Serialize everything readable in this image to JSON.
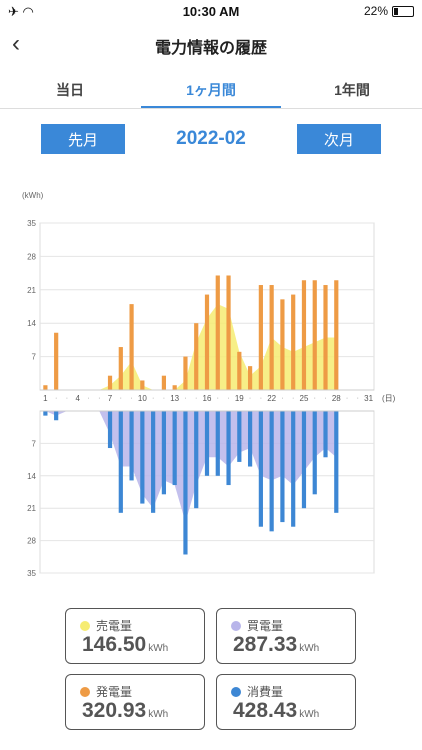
{
  "status": {
    "time": "10:30 AM",
    "left_icons": "✈ ◠",
    "battery": "22%"
  },
  "header": {
    "title": "電力情報の履歴",
    "back_icon": "chevron-left-icon"
  },
  "tabs": [
    {
      "label": "当日"
    },
    {
      "label": "1ヶ月間",
      "active": true
    },
    {
      "label": "1年間"
    }
  ],
  "month": {
    "prev_label": "先月",
    "current": "2022-02",
    "next_label": "次月"
  },
  "chart_data": {
    "type": "bar",
    "unit_label": "(kWh)",
    "x_unit_label": "(日)",
    "x": [
      1,
      2,
      3,
      4,
      5,
      6,
      7,
      8,
      9,
      10,
      11,
      12,
      13,
      14,
      15,
      16,
      17,
      18,
      19,
      20,
      21,
      22,
      23,
      24,
      25,
      26,
      27,
      28,
      29,
      30,
      31
    ],
    "x_tick_labels": [
      "1",
      "4",
      "7",
      "10",
      "13",
      "16",
      "19",
      "22",
      "25",
      "28",
      "31"
    ],
    "y_ticks_top": [
      35,
      28,
      21,
      14,
      7
    ],
    "y_ticks_bottom": [
      7,
      14,
      21,
      28,
      35
    ],
    "ylim": [
      0,
      35
    ],
    "series": [
      {
        "name": "発電量",
        "color": "#ee9b45",
        "kind": "bar-up",
        "values": [
          1,
          12,
          0,
          0,
          0,
          0,
          3,
          9,
          18,
          2,
          0,
          3,
          1,
          7,
          14,
          20,
          24,
          24,
          8,
          5,
          22,
          22,
          19,
          20,
          23,
          23,
          22,
          23,
          0,
          0,
          0
        ]
      },
      {
        "name": "売電量",
        "color": "#f6ec72",
        "kind": "area-up",
        "values": [
          0,
          0,
          0,
          0,
          0,
          0,
          1,
          3,
          6,
          1,
          0,
          0,
          0,
          2,
          10,
          15,
          18,
          17,
          8,
          3,
          5,
          11,
          9,
          8,
          9,
          10,
          11,
          11,
          0,
          0,
          0
        ]
      },
      {
        "name": "消費量",
        "color": "#3d87d4",
        "kind": "bar-down",
        "values": [
          1,
          2,
          0,
          0,
          0,
          0,
          8,
          22,
          15,
          20,
          22,
          18,
          16,
          31,
          21,
          14,
          14,
          16,
          11,
          12,
          25,
          26,
          24,
          25,
          21,
          18,
          10,
          22,
          0,
          0,
          0
        ]
      },
      {
        "name": "買電量",
        "color": "#b8b5ea",
        "kind": "area-down",
        "values": [
          0,
          1,
          0,
          0,
          0,
          0,
          5,
          12,
          12,
          18,
          21,
          15,
          16,
          24,
          16,
          10,
          10,
          12,
          9,
          8,
          14,
          15,
          14,
          16,
          13,
          10,
          8,
          10,
          0,
          0,
          0
        ]
      }
    ]
  },
  "summary": [
    {
      "label": "売電量",
      "value": "146.50",
      "unit": "kWh",
      "color": "#f6ec72"
    },
    {
      "label": "買電量",
      "value": "287.33",
      "unit": "kWh",
      "color": "#b8b5ea"
    },
    {
      "label": "発電量",
      "value": "320.93",
      "unit": "kWh",
      "color": "#ee9b45"
    },
    {
      "label": "消費量",
      "value": "428.43",
      "unit": "kWh",
      "color": "#3d87d4"
    }
  ]
}
